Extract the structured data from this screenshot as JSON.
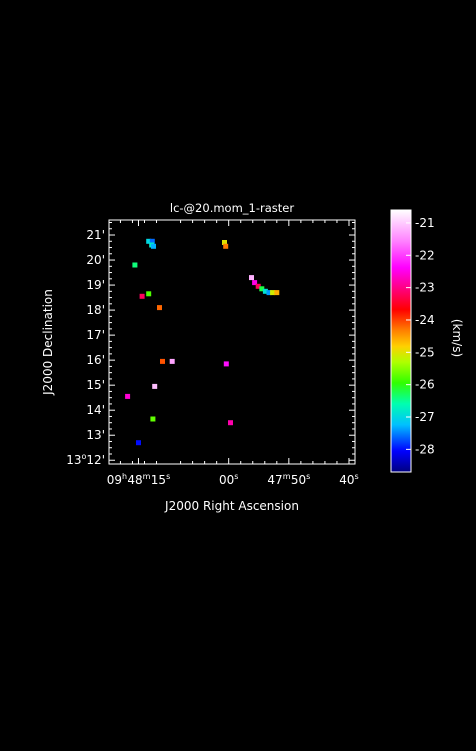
{
  "chart_data": {
    "type": "heatmap",
    "title": "lc-@20.mom_1-raster",
    "xlabel": "J2000 Right Ascension",
    "ylabel": "J2000 Declination",
    "x_ticks": [
      {
        "ra_s": 15,
        "h": "09",
        "m": "48",
        "s": "15"
      },
      {
        "ra_s": 0,
        "s": "00"
      },
      {
        "ra_s": -10,
        "m": "47",
        "s": "50"
      },
      {
        "ra_s": -20,
        "s": "40"
      }
    ],
    "xlim_ra_s": [
      19.9,
      -21.0
    ],
    "y_ticks": [
      {
        "dec_arcmin": 12,
        "d": "13",
        "m": "12"
      },
      {
        "dec_arcmin": 13,
        "m": "13"
      },
      {
        "dec_arcmin": 14,
        "m": "14"
      },
      {
        "dec_arcmin": 15,
        "m": "15"
      },
      {
        "dec_arcmin": 16,
        "m": "16"
      },
      {
        "dec_arcmin": 17,
        "m": "17"
      },
      {
        "dec_arcmin": 18,
        "m": "18"
      },
      {
        "dec_arcmin": 19,
        "m": "19"
      },
      {
        "dec_arcmin": 20,
        "m": "20"
      },
      {
        "dec_arcmin": 21,
        "m": "21"
      }
    ],
    "ylim_dec_arcmin": [
      11.85,
      21.6
    ],
    "colorbar": {
      "label": "(km/s)",
      "ticks": [
        "-21",
        "-22",
        "-23",
        "-24",
        "-25",
        "-26",
        "-27",
        "-28"
      ],
      "range": [
        -28.7,
        -20.6
      ]
    },
    "points": [
      {
        "ra_s": 13.3,
        "dec": 20.75,
        "v": -27.0
      },
      {
        "ra_s": 12.7,
        "dec": 20.75,
        "v": -27.6
      },
      {
        "ra_s": 12.8,
        "dec": 20.6,
        "v": -26.8
      },
      {
        "ra_s": 12.5,
        "dec": 20.55,
        "v": -27.3
      },
      {
        "ra_s": 0.7,
        "dec": 20.7,
        "v": -25.0
      },
      {
        "ra_s": 0.5,
        "dec": 20.55,
        "v": -24.3
      },
      {
        "ra_s": 15.6,
        "dec": 19.8,
        "v": -26.4
      },
      {
        "ra_s": -3.8,
        "dec": 19.3,
        "v": -21.2
      },
      {
        "ra_s": -4.3,
        "dec": 19.1,
        "v": -22.5
      },
      {
        "ra_s": -4.9,
        "dec": 18.95,
        "v": -23.2
      },
      {
        "ra_s": -5.5,
        "dec": 18.85,
        "v": -26.2
      },
      {
        "ra_s": -6.1,
        "dec": 18.75,
        "v": -26.9
      },
      {
        "ra_s": -6.7,
        "dec": 18.7,
        "v": -27.4
      },
      {
        "ra_s": -7.3,
        "dec": 18.7,
        "v": -25.1
      },
      {
        "ra_s": -8.0,
        "dec": 18.7,
        "v": -24.6
      },
      {
        "ra_s": 13.3,
        "dec": 18.65,
        "v": -25.8
      },
      {
        "ra_s": 14.4,
        "dec": 18.55,
        "v": -23.2
      },
      {
        "ra_s": 11.5,
        "dec": 18.1,
        "v": -24.2
      },
      {
        "ra_s": 11.0,
        "dec": 15.95,
        "v": -24.1
      },
      {
        "ra_s": 9.4,
        "dec": 15.95,
        "v": -21.3
      },
      {
        "ra_s": 0.4,
        "dec": 15.85,
        "v": -22.3
      },
      {
        "ra_s": 12.3,
        "dec": 14.95,
        "v": -21.1
      },
      {
        "ra_s": 16.8,
        "dec": 14.55,
        "v": -22.6
      },
      {
        "ra_s": 12.6,
        "dec": 13.65,
        "v": -25.7
      },
      {
        "ra_s": -0.3,
        "dec": 13.5,
        "v": -22.8
      },
      {
        "ra_s": 15.0,
        "dec": 12.7,
        "v": -28.0
      }
    ]
  }
}
